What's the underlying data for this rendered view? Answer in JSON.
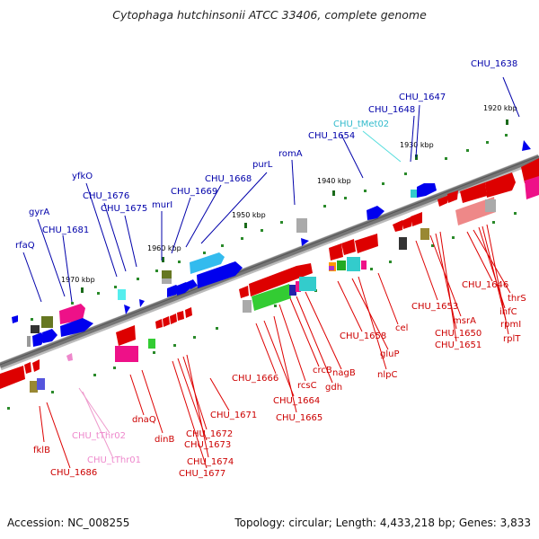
{
  "title": "Cytophaga hutchinsonii ATCC 33406, complete genome",
  "accession": "Accession: NC_008255",
  "topology": "Topology: circular; Length: 4,433,218 bp; Genes: 3,833",
  "ticks": [
    "1920 kbp",
    "1930 kbp",
    "1940 kbp",
    "1950 kbp",
    "1960 kbp",
    "1970 kbp"
  ],
  "colors": {
    "forward": "#0000ee",
    "reverse": "#dd0000",
    "trna": "#44cccc",
    "trna_rev": "#ee88cc",
    "backbone": "#777777"
  },
  "top_labels": [
    "CHU_1638",
    "CHU_1647",
    "CHU_1648",
    "CHU_tMet02",
    "CHU_1654",
    "romA",
    "purL",
    "CHU_1668",
    "CHU_1669",
    "murI",
    "CHU_1675",
    "CHU_1676",
    "yfkO",
    "gyrA",
    "CHU_1681",
    "rfaQ"
  ],
  "bottom_labels": [
    "CHU_1646",
    "thrS",
    "infC",
    "rpmI",
    "rplT",
    "CHU_1653",
    "msrA",
    "CHU_1650",
    "CHU_1651",
    "cel",
    "CHU_1658",
    "gluP",
    "nlpC",
    "crcB",
    "nagB",
    "rcsC",
    "gdh",
    "CHU_1666",
    "CHU_1664",
    "CHU_1665",
    "CHU_1671",
    "CHU_1672",
    "CHU_1673",
    "CHU_1674",
    "CHU_1677",
    "dnaQ",
    "dinB",
    "CHU_tThr02",
    "CHU_tThr01",
    "fklB",
    "CHU_1686"
  ]
}
